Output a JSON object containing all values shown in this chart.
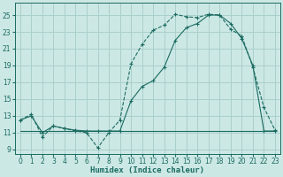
{
  "xlabel": "Humidex (Indice chaleur)",
  "background_color": "#cce8e5",
  "grid_color": "#aacfcc",
  "line_color": "#1a6b60",
  "xlim": [
    -0.5,
    23.5
  ],
  "ylim": [
    8.5,
    26.5
  ],
  "xticks": [
    0,
    1,
    2,
    3,
    4,
    5,
    6,
    7,
    8,
    9,
    10,
    11,
    12,
    13,
    14,
    15,
    16,
    17,
    18,
    19,
    20,
    21,
    22,
    23
  ],
  "yticks": [
    9,
    11,
    13,
    15,
    17,
    19,
    21,
    23,
    25
  ],
  "series1_x": [
    0,
    1,
    2,
    3,
    4,
    5,
    6,
    7,
    8,
    9,
    10,
    11,
    12,
    13,
    14,
    15,
    16,
    17,
    18,
    19,
    20,
    21,
    22,
    23
  ],
  "series1_y": [
    12.5,
    13.2,
    10.5,
    11.8,
    11.5,
    11.2,
    11.0,
    9.2,
    11.0,
    12.5,
    19.2,
    21.5,
    23.2,
    23.8,
    25.1,
    24.8,
    24.7,
    25.1,
    25.0,
    23.3,
    22.5,
    18.8,
    14.0,
    11.3
  ],
  "series2_x": [
    0,
    1,
    2,
    3,
    4,
    5,
    6,
    7,
    8,
    9,
    10,
    11,
    12,
    13,
    14,
    15,
    16,
    17,
    18,
    19,
    20,
    21,
    22,
    23
  ],
  "series2_y": [
    11.2,
    11.2,
    11.2,
    11.2,
    11.2,
    11.2,
    11.2,
    11.2,
    11.2,
    11.2,
    11.2,
    11.2,
    11.2,
    11.2,
    11.2,
    11.2,
    11.2,
    11.2,
    11.2,
    11.2,
    11.2,
    11.2,
    11.2,
    11.2
  ],
  "series3_x": [
    0,
    1,
    2,
    3,
    4,
    5,
    6,
    7,
    8,
    9,
    10,
    11,
    12,
    13,
    14,
    15,
    16,
    17,
    18,
    19,
    20,
    21,
    22,
    23
  ],
  "series3_y": [
    12.5,
    13.0,
    11.0,
    11.8,
    11.5,
    11.3,
    11.2,
    11.2,
    11.2,
    11.2,
    14.8,
    16.5,
    17.2,
    18.8,
    22.0,
    23.5,
    24.0,
    25.0,
    25.0,
    24.0,
    22.2,
    19.0,
    11.2,
    11.2
  ],
  "xlabel_fontsize": 6.5,
  "tick_fontsize": 5.5
}
